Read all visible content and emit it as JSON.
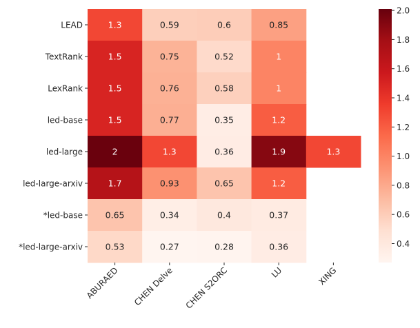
{
  "chart_data": {
    "type": "heatmap",
    "title": "",
    "xlabel": "",
    "ylabel": "",
    "colormap": "Reds",
    "x_categories": [
      "ABURAED",
      "CHEN Delve",
      "CHEN S2ORC",
      "LU",
      "XING"
    ],
    "y_categories": [
      "LEAD",
      "TextRank",
      "LexRank",
      "led-base",
      "led-large",
      "led-large-arxiv",
      "*led-base",
      "*led-large-arxiv"
    ],
    "values": [
      [
        1.3,
        0.59,
        0.6,
        0.85,
        null
      ],
      [
        1.5,
        0.75,
        0.52,
        1,
        null
      ],
      [
        1.5,
        0.76,
        0.58,
        1,
        null
      ],
      [
        1.5,
        0.77,
        0.35,
        1.2,
        null
      ],
      [
        2,
        1.3,
        0.36,
        1.9,
        1.3
      ],
      [
        1.7,
        0.93,
        0.65,
        1.2,
        null
      ],
      [
        0.65,
        0.34,
        0.4,
        0.37,
        null
      ],
      [
        0.53,
        0.27,
        0.28,
        0.36,
        null
      ]
    ],
    "colorbar": {
      "range": [
        0.27,
        2.01
      ],
      "ticks": [
        "0.4",
        "0.6",
        "0.8",
        "1.0",
        "1.2",
        "1.4",
        "1.6",
        "1.8",
        "2.0"
      ]
    }
  }
}
